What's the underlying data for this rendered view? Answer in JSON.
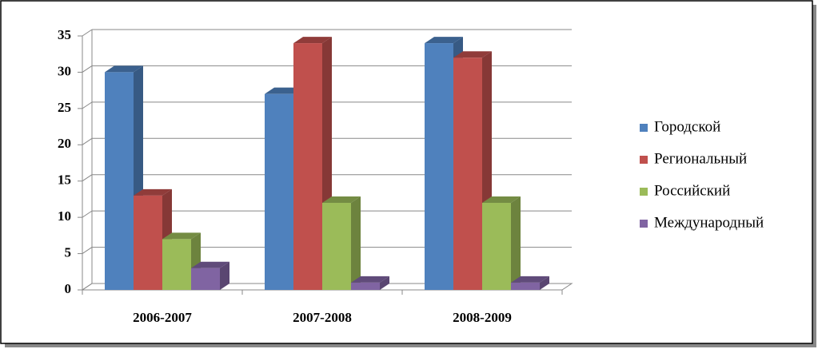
{
  "chart_data": {
    "type": "bar3d",
    "categories": [
      "2006-2007",
      "2007-2008",
      "2008-2009"
    ],
    "series": [
      {
        "name": "Городской",
        "color": "#4f81bd",
        "values": [
          30,
          27,
          34
        ]
      },
      {
        "name": "Региональный",
        "color": "#c0504d",
        "values": [
          13,
          34,
          32
        ]
      },
      {
        "name": "Российский",
        "color": "#9bbb59",
        "values": [
          7,
          12,
          12
        ]
      },
      {
        "name": "Международный",
        "color": "#8064a2",
        "values": [
          3,
          1,
          1
        ]
      }
    ],
    "ylim": [
      0,
      35
    ],
    "yticks": [
      0,
      5,
      10,
      15,
      20,
      25,
      30,
      35
    ],
    "grid": true,
    "legend": "right"
  }
}
